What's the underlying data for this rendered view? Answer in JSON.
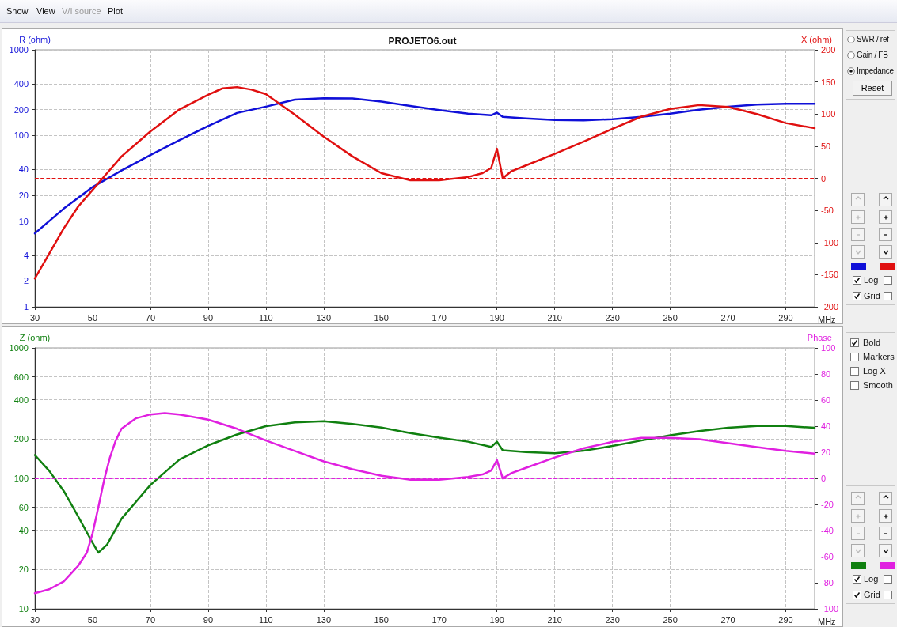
{
  "chart_data": [
    {
      "type": "line",
      "title": "PROJETO6.out",
      "xlabel": "MHz",
      "ylabel": "R (ohm)",
      "y2label": "X (ohm)",
      "xlim": [
        30,
        300
      ],
      "xticks": [
        30,
        50,
        70,
        90,
        110,
        130,
        150,
        170,
        190,
        210,
        230,
        250,
        270,
        290
      ],
      "ylim": [
        1,
        1000
      ],
      "yticks": [
        1,
        2,
        4,
        10,
        20,
        40,
        100,
        200,
        400,
        1000
      ],
      "y2lim": [
        -200,
        200
      ],
      "y2ticks": [
        -200,
        -150,
        -100,
        -50,
        0,
        50,
        100,
        150,
        200
      ],
      "log": "y",
      "grid": true,
      "marker": "none",
      "line_style": "solid",
      "ref_lines": [
        {
          "axis": "y2",
          "value": 0,
          "color": "#e01010",
          "line_style": "dashed"
        }
      ],
      "series": [
        {
          "color": "#1010d8",
          "x": [
            30,
            40,
            50,
            60,
            70,
            80,
            90,
            100,
            110,
            120,
            130,
            140,
            150,
            160,
            170,
            180,
            188,
            190,
            192,
            200,
            210,
            220,
            230,
            240,
            250,
            260,
            270,
            280,
            290,
            300
          ],
          "values": [
            7.2,
            14,
            25,
            39,
            59,
            88,
            129,
            183,
            217,
            262,
            272,
            270,
            248,
            221,
            198,
            180,
            172,
            185,
            165,
            158,
            152,
            150,
            155,
            165,
            180,
            200,
            217,
            230,
            235,
            235
          ]
        },
        {
          "color": "#e01010",
          "axis": "y2",
          "x": [
            30,
            35,
            40,
            45,
            50,
            55,
            60,
            70,
            80,
            90,
            95,
            100,
            105,
            110,
            120,
            130,
            140,
            150,
            160,
            170,
            180,
            185,
            188,
            190,
            192,
            195,
            200,
            210,
            220,
            230,
            240,
            250,
            260,
            270,
            280,
            290,
            300
          ],
          "values": [
            -156,
            -117,
            -78,
            -44,
            -18,
            8,
            34,
            73,
            107,
            130,
            140,
            142,
            138,
            131,
            99,
            65,
            34,
            8,
            -3,
            -3,
            2,
            8,
            16,
            46,
            0,
            11,
            20,
            38,
            57,
            77,
            96,
            108,
            114,
            111,
            100,
            86,
            78
          ]
        }
      ]
    },
    {
      "type": "line",
      "xlabel": "MHz",
      "ylabel": "Z (ohm)",
      "y2label": "Phase",
      "xlim": [
        30,
        300
      ],
      "xticks": [
        30,
        50,
        70,
        90,
        110,
        130,
        150,
        170,
        190,
        210,
        230,
        250,
        270,
        290
      ],
      "ylim": [
        10,
        1000
      ],
      "yticks": [
        10,
        20,
        40,
        60,
        100,
        200,
        400,
        600,
        1000
      ],
      "y2lim": [
        -100,
        100
      ],
      "y2ticks": [
        -100,
        -80,
        -60,
        -40,
        -20,
        0,
        20,
        40,
        60,
        80,
        100
      ],
      "log": "y",
      "grid": true,
      "marker": "none",
      "line_style": "solid",
      "ref_lines": [
        {
          "axis": "y2",
          "value": 0,
          "color": "#e020e0",
          "line_style": "dashed"
        }
      ],
      "series": [
        {
          "color": "#108010",
          "x": [
            30,
            35,
            40,
            45,
            50,
            52,
            55,
            60,
            65,
            70,
            80,
            90,
            100,
            110,
            120,
            130,
            140,
            150,
            160,
            170,
            180,
            188,
            190,
            192,
            200,
            210,
            220,
            230,
            240,
            250,
            260,
            270,
            280,
            290,
            300
          ],
          "values": [
            151,
            114,
            80,
            51,
            32,
            27,
            31,
            49,
            66,
            89,
            139,
            179,
            217,
            251,
            268,
            274,
            261,
            245,
            222,
            205,
            191,
            174,
            191,
            164,
            159,
            156,
            163,
            177,
            195,
            214,
            230,
            244,
            252,
            252,
            244
          ]
        },
        {
          "color": "#e020e0",
          "axis": "y2",
          "x": [
            30,
            35,
            40,
            45,
            48,
            50,
            52,
            54,
            56,
            58,
            60,
            65,
            70,
            75,
            80,
            90,
            100,
            110,
            120,
            130,
            140,
            150,
            160,
            170,
            180,
            185,
            188,
            190,
            192,
            195,
            200,
            210,
            220,
            230,
            240,
            250,
            260,
            270,
            280,
            290,
            300
          ],
          "values": [
            -88,
            -85,
            -79,
            -67,
            -57,
            -42,
            -22,
            -1,
            16,
            29,
            38,
            46,
            49,
            50,
            49,
            45,
            38,
            29,
            21,
            13,
            7,
            2,
            -1,
            -1,
            1,
            3,
            6,
            14,
            0,
            4,
            8,
            16,
            23,
            28,
            31,
            31,
            30,
            27,
            24,
            21,
            19
          ]
        }
      ]
    },
    {
      "type": "other",
      "annotations": [
        "Show",
        "View",
        "V/I source",
        "Plot",
        "SWR / ref",
        "Gain / FB",
        "Impedance",
        "Reset",
        "Log",
        "Grid",
        "Bold",
        "Markers",
        "Log X",
        "Smooth",
        "Log",
        "Grid"
      ]
    }
  ]
}
